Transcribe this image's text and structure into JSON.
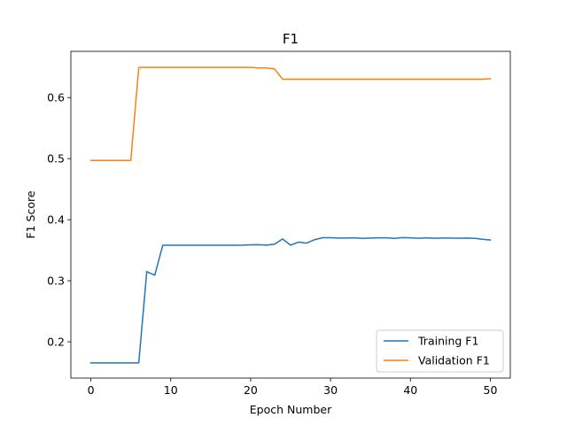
{
  "chart_data": {
    "type": "line",
    "title": "F1",
    "xlabel": "Epoch Number",
    "ylabel": "F1 Score",
    "xlim": [
      -2.5,
      52.5
    ],
    "ylim": [
      0.1406,
      0.6757
    ],
    "xticks": [
      0,
      10,
      20,
      30,
      40,
      50
    ],
    "xtick_labels": [
      "0",
      "10",
      "20",
      "30",
      "40",
      "50"
    ],
    "yticks": [
      0.2,
      0.3,
      0.4,
      0.5,
      0.6
    ],
    "ytick_labels": [
      "0.2",
      "0.3",
      "0.4",
      "0.5",
      "0.6"
    ],
    "grid": false,
    "legend_position": "lower-right",
    "x": [
      0,
      1,
      2,
      3,
      4,
      5,
      6,
      7,
      8,
      9,
      10,
      11,
      12,
      13,
      14,
      15,
      16,
      17,
      18,
      19,
      20,
      21,
      22,
      23,
      24,
      25,
      26,
      27,
      28,
      29,
      30,
      31,
      32,
      33,
      34,
      35,
      36,
      37,
      38,
      39,
      40,
      41,
      42,
      43,
      44,
      45,
      46,
      47,
      48,
      49,
      50
    ],
    "series": [
      {
        "name": "Training F1",
        "color": "#1f77b4",
        "values": [
          0.1655,
          0.1655,
          0.1655,
          0.1655,
          0.1655,
          0.1655,
          0.1655,
          0.3149,
          0.3091,
          0.3581,
          0.3581,
          0.3581,
          0.3581,
          0.3581,
          0.3581,
          0.3581,
          0.3581,
          0.3581,
          0.3581,
          0.3583,
          0.3589,
          0.3591,
          0.3583,
          0.36,
          0.3684,
          0.3583,
          0.3633,
          0.3616,
          0.3672,
          0.3704,
          0.3704,
          0.3699,
          0.3699,
          0.3702,
          0.3693,
          0.3699,
          0.3702,
          0.3702,
          0.3693,
          0.3707,
          0.3702,
          0.3696,
          0.3702,
          0.3696,
          0.3699,
          0.3699,
          0.3696,
          0.3699,
          0.3696,
          0.3679,
          0.3667
        ]
      },
      {
        "name": "Validation F1",
        "color": "#ff7f0e",
        "values": [
          0.497,
          0.497,
          0.497,
          0.497,
          0.497,
          0.497,
          0.6494,
          0.6494,
          0.6494,
          0.6494,
          0.6494,
          0.6494,
          0.6494,
          0.6494,
          0.6494,
          0.6494,
          0.6494,
          0.6494,
          0.6494,
          0.6494,
          0.6494,
          0.6485,
          0.6485,
          0.6468,
          0.6301,
          0.6301,
          0.6301,
          0.6301,
          0.6301,
          0.6301,
          0.6301,
          0.6301,
          0.6301,
          0.6301,
          0.6301,
          0.6301,
          0.6301,
          0.6301,
          0.6301,
          0.6301,
          0.6301,
          0.6301,
          0.6301,
          0.6301,
          0.6301,
          0.6301,
          0.6301,
          0.6301,
          0.6301,
          0.6301,
          0.6309
        ]
      }
    ]
  }
}
